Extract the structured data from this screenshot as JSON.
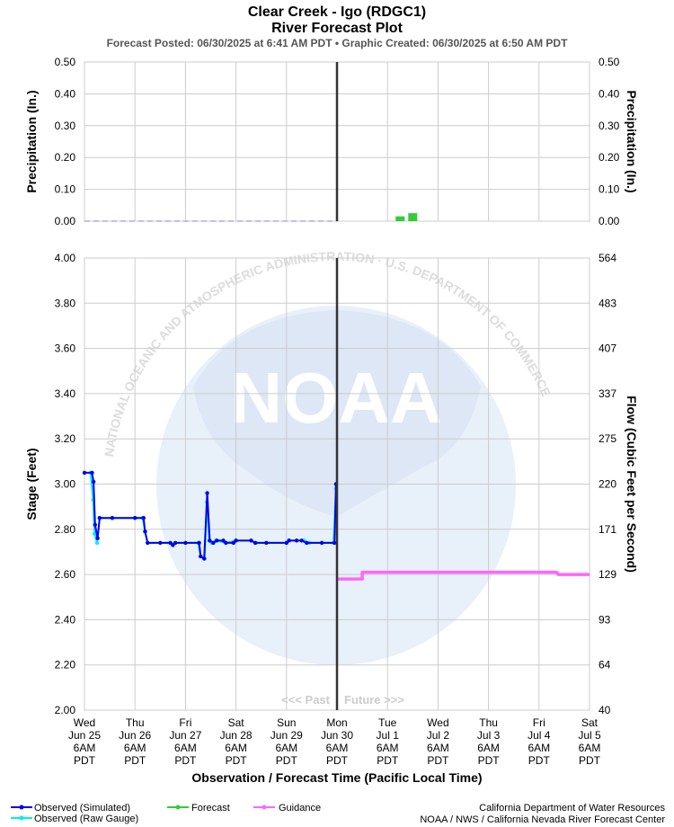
{
  "header": {
    "title_line1": "Clear Creek - Igo (RDGC1)",
    "title_line2": "River Forecast Plot",
    "subtitle": "Forecast Posted: 06/30/2025 at 6:41 AM PDT  •  Graphic Created: 06/30/2025 at 6:50 AM PDT"
  },
  "watermark": {
    "logo_text": "NOAA",
    "ring_text": "NATIONAL OCEANIC AND ATMOSPHERIC ADMINISTRATION · U.S. DEPARTMENT OF COMMERCE"
  },
  "past_future": {
    "past": "<<< Past",
    "future": "Future >>>"
  },
  "legend": {
    "observed_sim": "Observed (Simulated)",
    "observed_raw": "Observed (Raw Gauge)",
    "forecast": "Forecast",
    "guidance": "Guidance"
  },
  "credits": {
    "line1": "California Department of Water Resources",
    "line2": "NOAA / NWS / California Nevada River Forecast Center"
  },
  "colors": {
    "observed_sim": "#0000ee",
    "observed_raw": "#00eeee",
    "forecast": "#33cc33",
    "guidance": "#ff66ff",
    "now_line": "#333333",
    "grid": "#cccccc"
  },
  "chart_data": [
    {
      "type": "bar",
      "ylabel_left": "Precipitation (In.)",
      "ylabel_right": "Precipitation (In.)",
      "ylim": [
        0,
        0.5
      ],
      "yticks": [
        "0.00",
        "0.10",
        "0.20",
        "0.30",
        "0.40",
        "0.50"
      ],
      "grid": true,
      "observed_precip": {
        "name": "Observed",
        "start_day": 0,
        "end_day": 5,
        "value": 0.0
      },
      "forecast_precip": [
        {
          "day": 6.25,
          "value": 0.015
        },
        {
          "day": 6.5,
          "value": 0.025
        }
      ]
    },
    {
      "type": "line",
      "xlabel": "Observation / Forecast Time (Pacific Local Time)",
      "ylabel_left": "Stage (Feet)",
      "ylabel_right": "Flow (Cubic Feet per Second)",
      "ylim": [
        2.0,
        4.0
      ],
      "yticks": [
        "2.00",
        "2.20",
        "2.40",
        "2.60",
        "2.80",
        "3.00",
        "3.20",
        "3.40",
        "3.60",
        "3.80",
        "4.00"
      ],
      "right_ticks": [
        "40",
        "64",
        "93",
        "129",
        "171",
        "220",
        "275",
        "337",
        "407",
        "483",
        "564"
      ],
      "x_days": 10,
      "now_day": 5,
      "grid": true,
      "x_labels": [
        {
          "day": "Wed",
          "date": "Jun 25",
          "time": "6AM",
          "tz": "PDT"
        },
        {
          "day": "Thu",
          "date": "Jun 26",
          "time": "6AM",
          "tz": "PDT"
        },
        {
          "day": "Fri",
          "date": "Jun 27",
          "time": "6AM",
          "tz": "PDT"
        },
        {
          "day": "Sat",
          "date": "Jun 28",
          "time": "6AM",
          "tz": "PDT"
        },
        {
          "day": "Sun",
          "date": "Jun 29",
          "time": "6AM",
          "tz": "PDT"
        },
        {
          "day": "Mon",
          "date": "Jun 30",
          "time": "6AM",
          "tz": "PDT"
        },
        {
          "day": "Tue",
          "date": "Jul 1",
          "time": "6AM",
          "tz": "PDT"
        },
        {
          "day": "Wed",
          "date": "Jul 2",
          "time": "6AM",
          "tz": "PDT"
        },
        {
          "day": "Thu",
          "date": "Jul 3",
          "time": "6AM",
          "tz": "PDT"
        },
        {
          "day": "Fri",
          "date": "Jul 4",
          "time": "6AM",
          "tz": "PDT"
        },
        {
          "day": "Sat",
          "date": "Jul 5",
          "time": "6AM",
          "tz": "PDT"
        }
      ],
      "series": [
        {
          "name": "Observed (Raw Gauge)",
          "points": [
            [
              0.0,
              3.05
            ],
            [
              0.12,
              3.05
            ],
            [
              0.17,
              2.93
            ],
            [
              0.2,
              2.78
            ],
            [
              0.25,
              2.74
            ],
            [
              0.3,
              2.85
            ],
            [
              0.55,
              2.85
            ],
            [
              1.0,
              2.85
            ],
            [
              1.15,
              2.85
            ],
            [
              1.2,
              2.79
            ],
            [
              1.25,
              2.74
            ],
            [
              1.5,
              2.74
            ],
            [
              2.0,
              2.74
            ],
            [
              2.25,
              2.74
            ],
            [
              2.3,
              2.68
            ],
            [
              2.38,
              2.67
            ],
            [
              2.42,
              2.92
            ],
            [
              2.47,
              2.75
            ],
            [
              2.52,
              2.74
            ],
            [
              2.6,
              2.75
            ],
            [
              2.8,
              2.74
            ],
            [
              3.0,
              2.75
            ],
            [
              3.3,
              2.75
            ],
            [
              3.4,
              2.74
            ],
            [
              3.6,
              2.74
            ],
            [
              4.0,
              2.74
            ],
            [
              4.05,
              2.75
            ],
            [
              4.2,
              2.75
            ],
            [
              4.35,
              2.75
            ],
            [
              4.45,
              2.74
            ],
            [
              4.7,
              2.74
            ],
            [
              4.93,
              2.74
            ],
            [
              4.98,
              2.98
            ]
          ]
        },
        {
          "name": "Observed (Simulated)",
          "points": [
            [
              0.0,
              3.05
            ],
            [
              0.15,
              3.05
            ],
            [
              0.18,
              3.01
            ],
            [
              0.21,
              2.82
            ],
            [
              0.26,
              2.76
            ],
            [
              0.3,
              2.85
            ],
            [
              0.55,
              2.85
            ],
            [
              1.0,
              2.85
            ],
            [
              1.17,
              2.85
            ],
            [
              1.2,
              2.79
            ],
            [
              1.25,
              2.74
            ],
            [
              1.5,
              2.74
            ],
            [
              1.7,
              2.74
            ],
            [
              1.75,
              2.73
            ],
            [
              1.8,
              2.74
            ],
            [
              2.0,
              2.74
            ],
            [
              2.27,
              2.74
            ],
            [
              2.3,
              2.68
            ],
            [
              2.37,
              2.67
            ],
            [
              2.43,
              2.96
            ],
            [
              2.48,
              2.75
            ],
            [
              2.55,
              2.74
            ],
            [
              2.62,
              2.75
            ],
            [
              2.75,
              2.75
            ],
            [
              2.8,
              2.74
            ],
            [
              2.95,
              2.74
            ],
            [
              3.0,
              2.75
            ],
            [
              3.3,
              2.75
            ],
            [
              3.38,
              2.74
            ],
            [
              3.6,
              2.74
            ],
            [
              4.0,
              2.74
            ],
            [
              4.05,
              2.75
            ],
            [
              4.2,
              2.75
            ],
            [
              4.3,
              2.75
            ],
            [
              4.4,
              2.74
            ],
            [
              4.7,
              2.74
            ],
            [
              4.95,
              2.74
            ],
            [
              4.98,
              3.0
            ]
          ]
        },
        {
          "name": "Guidance",
          "points": [
            [
              5.0,
              2.58
            ],
            [
              5.5,
              2.58
            ],
            [
              5.5,
              2.61
            ],
            [
              7.0,
              2.61
            ],
            [
              8.0,
              2.61
            ],
            [
              9.35,
              2.61
            ],
            [
              9.38,
              2.6
            ],
            [
              10.0,
              2.6
            ]
          ]
        }
      ]
    }
  ]
}
